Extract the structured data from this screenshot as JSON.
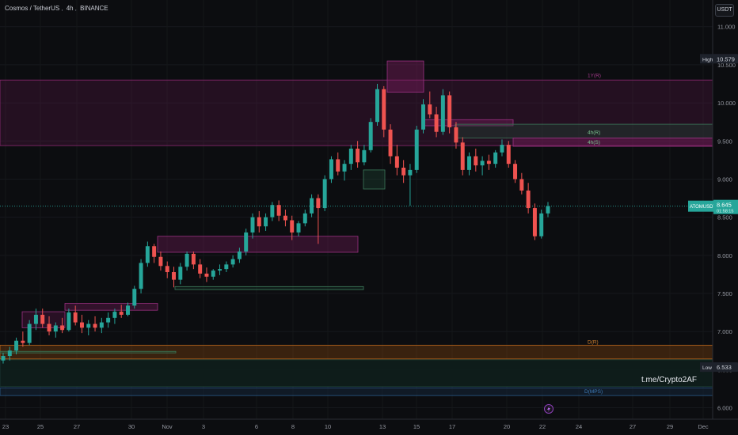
{
  "header": {
    "symbol_name": "Cosmos / TetherUS",
    "interval": "4h",
    "exchange": "BINANCE"
  },
  "currency_button": "USDT",
  "watermark": "t.me/Crypto2AF",
  "colors": {
    "background": "#0c0d10",
    "up": "#26a69a",
    "down": "#ef5350",
    "zone_purple": "#7a1d5e",
    "zone_orange": "#b05a10",
    "zone_green": "#1f4a36",
    "price_badge": "#26a69a"
  },
  "chart_data": {
    "type": "candlestick",
    "title": "Cosmos / TetherUS, 4h, BINANCE",
    "x_ticks": [
      "23",
      "25",
      "27",
      "30",
      "Nov",
      "3",
      "6",
      "8",
      "10",
      "13",
      "15",
      "17",
      "20",
      "22",
      "24",
      "27",
      "29",
      "Dec"
    ],
    "y_ticks": [
      6.0,
      6.5,
      7.0,
      7.5,
      8.0,
      8.5,
      9.0,
      9.5,
      10.0,
      10.5,
      11.0
    ],
    "ylim": [
      5.85,
      11.35
    ],
    "price_labels": {
      "high": {
        "label": "High",
        "value": "10.579"
      },
      "low": {
        "label": "Low",
        "value": "6.533"
      },
      "current": {
        "label": "ATOMUSDT",
        "value": "8.645",
        "sub": "01:58:15"
      }
    },
    "zone_labels": [
      "1Y(R)",
      "4h(R)",
      "4h(S)",
      "D(R)",
      "D(MPS)"
    ],
    "price_line": 8.645,
    "candles": [
      [
        6.62,
        6.72,
        6.58,
        6.68
      ],
      [
        6.68,
        6.8,
        6.62,
        6.75
      ],
      [
        6.75,
        6.92,
        6.7,
        6.88
      ],
      [
        6.88,
        7.0,
        6.8,
        6.85
      ],
      [
        6.85,
        7.15,
        6.82,
        7.1
      ],
      [
        7.1,
        7.3,
        7.02,
        7.22
      ],
      [
        7.22,
        7.3,
        7.05,
        7.1
      ],
      [
        7.1,
        7.2,
        6.95,
        7.0
      ],
      [
        7.0,
        7.12,
        6.92,
        7.08
      ],
      [
        7.08,
        7.18,
        6.98,
        7.02
      ],
      [
        7.02,
        7.3,
        7.0,
        7.25
      ],
      [
        7.25,
        7.34,
        7.08,
        7.12
      ],
      [
        7.12,
        7.22,
        6.98,
        7.05
      ],
      [
        7.05,
        7.15,
        6.95,
        7.1
      ],
      [
        7.1,
        7.2,
        7.0,
        7.05
      ],
      [
        7.05,
        7.18,
        6.98,
        7.12
      ],
      [
        7.12,
        7.25,
        7.05,
        7.18
      ],
      [
        7.18,
        7.3,
        7.1,
        7.26
      ],
      [
        7.26,
        7.35,
        7.18,
        7.22
      ],
      [
        7.22,
        7.38,
        7.2,
        7.34
      ],
      [
        7.34,
        7.6,
        7.3,
        7.56
      ],
      [
        7.56,
        7.95,
        7.5,
        7.9
      ],
      [
        7.9,
        8.18,
        7.85,
        8.12
      ],
      [
        8.12,
        8.15,
        7.9,
        7.98
      ],
      [
        7.98,
        8.05,
        7.8,
        7.86
      ],
      [
        7.86,
        7.92,
        7.7,
        7.78
      ],
      [
        7.78,
        7.85,
        7.58,
        7.68
      ],
      [
        7.68,
        7.9,
        7.62,
        7.85
      ],
      [
        7.85,
        8.05,
        7.8,
        8.02
      ],
      [
        8.02,
        8.05,
        7.82,
        7.88
      ],
      [
        7.88,
        7.95,
        7.7,
        7.76
      ],
      [
        7.76,
        7.84,
        7.65,
        7.72
      ],
      [
        7.72,
        7.82,
        7.68,
        7.8
      ],
      [
        7.8,
        7.88,
        7.74,
        7.82
      ],
      [
        7.82,
        7.92,
        7.78,
        7.88
      ],
      [
        7.88,
        8.0,
        7.84,
        7.95
      ],
      [
        7.95,
        8.1,
        7.9,
        8.05
      ],
      [
        8.05,
        8.35,
        8.0,
        8.3
      ],
      [
        8.3,
        8.55,
        8.22,
        8.5
      ],
      [
        8.5,
        8.58,
        8.3,
        8.38
      ],
      [
        8.38,
        8.55,
        8.32,
        8.5
      ],
      [
        8.5,
        8.7,
        8.45,
        8.66
      ],
      [
        8.66,
        8.72,
        8.45,
        8.52
      ],
      [
        8.52,
        8.6,
        8.38,
        8.46
      ],
      [
        8.46,
        8.52,
        8.2,
        8.3
      ],
      [
        8.3,
        8.45,
        8.25,
        8.42
      ],
      [
        8.42,
        8.6,
        8.38,
        8.55
      ],
      [
        8.55,
        8.8,
        8.5,
        8.75
      ],
      [
        8.75,
        8.8,
        8.15,
        8.62
      ],
      [
        8.62,
        9.05,
        8.58,
        9.0
      ],
      [
        9.0,
        9.3,
        8.95,
        9.26
      ],
      [
        9.26,
        9.35,
        9.05,
        9.1
      ],
      [
        9.1,
        9.25,
        8.98,
        9.2
      ],
      [
        9.2,
        9.45,
        9.12,
        9.4
      ],
      [
        9.4,
        9.5,
        9.15,
        9.22
      ],
      [
        9.22,
        9.45,
        9.18,
        9.38
      ],
      [
        9.38,
        9.8,
        9.35,
        9.75
      ],
      [
        9.75,
        10.25,
        9.7,
        10.18
      ],
      [
        10.18,
        10.22,
        9.55,
        9.65
      ],
      [
        9.65,
        9.72,
        9.2,
        9.3
      ],
      [
        9.3,
        9.45,
        9.05,
        9.15
      ],
      [
        9.15,
        9.25,
        8.95,
        9.05
      ],
      [
        9.05,
        9.2,
        8.65,
        9.12
      ],
      [
        9.12,
        9.7,
        9.08,
        9.65
      ],
      [
        9.65,
        10.05,
        9.6,
        9.98
      ],
      [
        9.98,
        10.15,
        9.8,
        9.85
      ],
      [
        9.85,
        9.95,
        9.55,
        9.62
      ],
      [
        9.62,
        10.18,
        9.58,
        10.1
      ],
      [
        10.1,
        10.15,
        9.6,
        9.68
      ],
      [
        9.68,
        9.75,
        9.4,
        9.48
      ],
      [
        9.48,
        9.55,
        9.05,
        9.12
      ],
      [
        9.12,
        9.35,
        9.05,
        9.3
      ],
      [
        9.3,
        9.4,
        9.1,
        9.18
      ],
      [
        9.18,
        9.3,
        9.05,
        9.24
      ],
      [
        9.24,
        9.32,
        9.12,
        9.2
      ],
      [
        9.2,
        9.38,
        9.15,
        9.35
      ],
      [
        9.35,
        9.52,
        9.3,
        9.45
      ],
      [
        9.45,
        9.5,
        9.15,
        9.2
      ],
      [
        9.2,
        9.25,
        8.95,
        9.0
      ],
      [
        9.0,
        9.08,
        8.8,
        8.85
      ],
      [
        8.85,
        8.95,
        8.55,
        8.62
      ],
      [
        8.62,
        8.68,
        8.2,
        8.25
      ],
      [
        8.25,
        8.6,
        8.22,
        8.55
      ],
      [
        8.55,
        8.7,
        8.5,
        8.645
      ]
    ]
  }
}
